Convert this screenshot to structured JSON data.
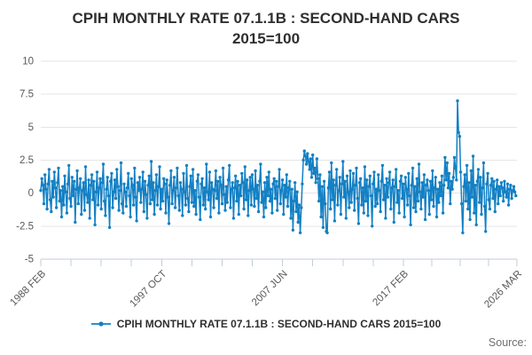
{
  "title": {
    "line1": "CPIH MONTHLY RATE 07.1.1B : SECOND-HAND CARS",
    "line2": "2015=100"
  },
  "legend": {
    "label": "CPIH MONTHLY RATE 07.1.1B : SECOND-HAND CARS 2015=100"
  },
  "source_label": "Source:",
  "colors": {
    "line": "#1380c4",
    "grid": "#e5e5e5",
    "axis": "#c3cdd9",
    "tick_text": "#595959",
    "title_text": "#2f2f2f",
    "legend_text": "#2f2f2f",
    "source_text": "#6f6f6f"
  },
  "chart_data": {
    "type": "line",
    "title": "CPIH MONTHLY RATE 07.1.1B : SECOND-HAND CARS 2015=100",
    "series_name": "CPIH MONTHLY RATE 07.1.1B : SECOND-HAND CARS 2015=100",
    "marker": "circle",
    "grid": true,
    "legend_position": "bottom",
    "ylim": [
      -5,
      10
    ],
    "y_ticks": [
      10,
      7.5,
      5,
      2.5,
      0,
      -2.5,
      -5
    ],
    "xlim_months": [
      0,
      457
    ],
    "x_tick_months": [
      0,
      116,
      232,
      348,
      457
    ],
    "x_tick_labels": [
      "1988 FEB",
      "1997 OCT",
      "2007 JUN",
      "2017 FEB",
      "2026 MAR"
    ],
    "x_minor_divisions": 4,
    "x_unit": "month from 1988 FEB",
    "values": [
      0.2,
      1.1,
      0.6,
      -0.8,
      1.4,
      0.3,
      -1.2,
      0.7,
      1.8,
      -0.5,
      -1.4,
      0.9,
      -0.3,
      1.6,
      0.4,
      -1.1,
      0.8,
      1.9,
      -0.6,
      0.2,
      -1.8,
      0.5,
      -0.9,
      1.3,
      0.1,
      -1.5,
      0.7,
      2.1,
      -0.4,
      -1.0,
      1.2,
      -0.2,
      0.9,
      -2.2,
      0.3,
      1.7,
      -0.8,
      0.4,
      1.1,
      -1.6,
      0.2,
      0.8,
      -1.3,
      2.0,
      -0.1,
      -0.7,
      1.0,
      -1.9,
      0.6,
      1.4,
      -0.5,
      0.9,
      -2.4,
      0.1,
      1.6,
      -0.9,
      0.4,
      1.1,
      -1.2,
      0.8,
      2.2,
      -0.6,
      -1.7,
      0.3,
      1.2,
      -0.2,
      -2.6,
      0.9,
      1.5,
      -1.1,
      0.1,
      1.0,
      -0.4,
      1.8,
      0.5,
      -1.3,
      0.2,
      2.3,
      -0.8,
      -1.5,
      0.7,
      0.1,
      -1.0,
      0.4,
      1.5,
      -0.2,
      -1.8,
      1.1,
      0.6,
      -0.9,
      1.9,
      -0.3,
      -2.1,
      0.8,
      0.2,
      1.2,
      -0.7,
      0.3,
      1.6,
      -1.4,
      0.9,
      -0.1,
      -1.9,
      0.6,
      1.3,
      -0.8,
      2.4,
      -0.5,
      0.8,
      -1.6,
      0.2,
      1.4,
      -0.9,
      0.5,
      2.0,
      -1.2,
      0.3,
      -0.6,
      1.1,
      0.7,
      -1.5,
      1.0,
      -0.3,
      -2.3,
      0.6,
      1.7,
      -0.8,
      0.2,
      1.2,
      -1.1,
      0.4,
      1.9,
      -0.2,
      -1.3,
      0.8,
      0.3,
      -1.7,
      1.5,
      0.1,
      -0.9,
      2.1,
      -0.4,
      -1.4,
      0.5,
      1.3,
      -0.7,
      1.8,
      -1.0,
      0.2,
      -1.6,
      0.9,
      1.4,
      -0.3,
      -2.0,
      0.7,
      1.1,
      -0.9,
      0.4,
      -1.2,
      2.2,
      0.1,
      -0.5,
      1.6,
      -1.8,
      0.8,
      0.3,
      -1.1,
      0.2,
      1.7,
      -0.4,
      0.9,
      -1.5,
      1.2,
      0.6,
      -0.8,
      1.9,
      -0.1,
      -1.3,
      0.5,
      -0.7,
      1.0,
      2.1,
      -1.1,
      0.3,
      0.8,
      -1.9,
      0.4,
      1.3,
      -0.6,
      0.9,
      -1.6,
      0.6,
      -0.2,
      1.5,
      0.8,
      -1.2,
      2.0,
      -0.5,
      1.0,
      -1.7,
      0.2,
      1.2,
      -0.9,
      1.4,
      0.3,
      -1.0,
      1.7,
      -0.4,
      0.6,
      -1.4,
      0.9,
      2.2,
      -0.7,
      0.1,
      -1.8,
      0.8,
      -1.1,
      1.2,
      -0.2,
      1.6,
      -0.6,
      0.3,
      -1.5,
      0.7,
      1.1,
      -0.4,
      0.9,
      -1.3,
      0.5,
      1.8,
      -0.8,
      0.2,
      1.0,
      -1.6,
      0.6,
      -0.3,
      1.4,
      -1.0,
      0.4,
      0.9,
      -1.9,
      0.3,
      -2.8,
      -0.6,
      0.8,
      -1.4,
      0.1,
      -2.2,
      -0.9,
      -3.0,
      -1.1,
      0.7,
      2.5,
      3.2,
      2.8,
      2.2,
      3.0,
      2.4,
      1.8,
      2.6,
      1.2,
      2.9,
      1.5,
      1.9,
      0.8,
      2.6,
      1.1,
      -0.6,
      1.4,
      -1.8,
      0.5,
      -2.6,
      0.9,
      -0.8,
      -2.9,
      -3.0,
      0.4,
      1.6,
      -1.2,
      2.3,
      -0.5,
      1.0,
      -2.1,
      0.6,
      1.8,
      -0.9,
      0.2,
      1.2,
      -1.6,
      0.7,
      2.4,
      -0.3,
      0.9,
      -1.9,
      1.3,
      0.1,
      -1.1,
      1.7,
      -0.7,
      0.3,
      1.5,
      -1.3,
      0.6,
      1.9,
      -0.4,
      -2.3,
      0.8,
      1.1,
      -0.9,
      0.4,
      -1.5,
      2.0,
      -0.6,
      1.0,
      -1.7,
      0.5,
      1.3,
      -0.2,
      -2.5,
      0.7,
      1.6,
      -1.0,
      0.3,
      -0.8,
      1.4,
      0.2,
      -1.4,
      0.9,
      2.1,
      -0.5,
      0.6,
      -1.9,
      1.1,
      -0.3,
      0.8,
      1.6,
      -1.2,
      0.4,
      1.0,
      -2.2,
      0.5,
      1.8,
      -0.7,
      0.2,
      -1.5,
      0.9,
      1.3,
      -0.4,
      0.7,
      -1.8,
      1.2,
      0.3,
      -0.9,
      1.5,
      -0.2,
      -2.4,
      0.6,
      1.9,
      -1.1,
      0.5,
      -1.4,
      1.1,
      -0.6,
      2.2,
      0.1,
      -1.2,
      0.8,
      -0.3,
      1.4,
      -2.0,
      0.6,
      1.0,
      0.2,
      -1.6,
      0.9,
      -0.5,
      1.7,
      -1.0,
      0.4,
      1.2,
      -1.8,
      0.3,
      -0.7,
      0.8,
      -0.2,
      1.3,
      -1.5,
      0.6,
      2.7,
      1.0,
      2.3,
      0.4,
      1.5,
      -0.8,
      0.9,
      0.3,
      1.2,
      2.7,
      1.9,
      1.0,
      7.0,
      4.6,
      4.3,
      1.6,
      -0.8,
      -3.0,
      0.5,
      1.4,
      -0.6,
      2.1,
      -1.2,
      0.8,
      -2.0,
      1.7,
      -0.3,
      2.8,
      -1.5,
      0.6,
      -2.4,
      0.9,
      1.8,
      -0.7,
      1.2,
      -1.6,
      0.4,
      2.3,
      -1.0,
      -2.9,
      0.7,
      1.5,
      -0.5,
      -1.2,
      0.6,
      1.1,
      -0.4,
      0.9,
      -1.4,
      0.3,
      1.0,
      -0.8,
      0.5,
      -0.2,
      0.8,
      0.4,
      -0.6,
      0.9,
      0.1,
      -0.3,
      0.7,
      -0.9,
      0.3,
      0.6,
      -0.4,
      0.2,
      0.5,
      0.1,
      -0.2
    ]
  }
}
